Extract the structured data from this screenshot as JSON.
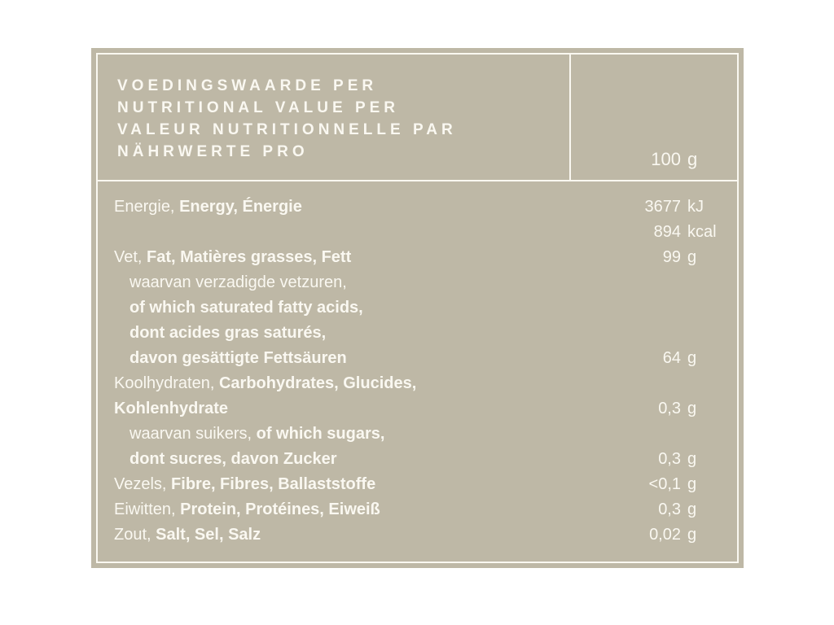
{
  "colors": {
    "page_background": "#ffffff",
    "label_background": "#beb8a6",
    "label_text": "#faf8f1"
  },
  "header": {
    "title_lines": [
      "VOEDINGSWAARDE PER",
      "NUTRITIONAL VALUE PER",
      "VALEUR NUTRITIONNELLE PAR",
      "NÄHRWERTE PRO"
    ],
    "amount": {
      "number": "100",
      "unit": "g"
    }
  },
  "rows": [
    {
      "indent": false,
      "segments": [
        {
          "text": "Energie, ",
          "bold": false
        },
        {
          "text": "Energy, Énergie",
          "bold": true
        }
      ],
      "value_number": "3677",
      "value_unit": "kJ"
    },
    {
      "indent": false,
      "segments": [],
      "value_number": "894",
      "value_unit": "kcal"
    },
    {
      "indent": false,
      "segments": [
        {
          "text": "Vet, ",
          "bold": false
        },
        {
          "text": "Fat, Matières grasses, Fett",
          "bold": true
        }
      ],
      "value_number": "99",
      "value_unit": "g"
    },
    {
      "indent": true,
      "segments": [
        {
          "text": "waarvan verzadigde vetzuren,",
          "bold": false
        }
      ],
      "value_number": "",
      "value_unit": ""
    },
    {
      "indent": true,
      "segments": [
        {
          "text": "of which saturated fatty acids,",
          "bold": true
        }
      ],
      "value_number": "",
      "value_unit": ""
    },
    {
      "indent": true,
      "segments": [
        {
          "text": "dont acides gras saturés,",
          "bold": true
        }
      ],
      "value_number": "",
      "value_unit": ""
    },
    {
      "indent": true,
      "segments": [
        {
          "text": "davon gesättigte Fettsäuren",
          "bold": true
        }
      ],
      "value_number": "64",
      "value_unit": "g"
    },
    {
      "indent": false,
      "segments": [
        {
          "text": "Koolhydraten, ",
          "bold": false
        },
        {
          "text": "Carbohydrates, Glucides,",
          "bold": true
        }
      ],
      "value_number": "",
      "value_unit": ""
    },
    {
      "indent": false,
      "segments": [
        {
          "text": "Kohlenhydrate",
          "bold": true
        }
      ],
      "value_number": "0,3",
      "value_unit": "g"
    },
    {
      "indent": true,
      "segments": [
        {
          "text": "waarvan suikers, ",
          "bold": false
        },
        {
          "text": "of which sugars,",
          "bold": true
        }
      ],
      "value_number": "",
      "value_unit": ""
    },
    {
      "indent": true,
      "segments": [
        {
          "text": "dont sucres, davon Zucker",
          "bold": true
        }
      ],
      "value_number": "0,3",
      "value_unit": "g"
    },
    {
      "indent": false,
      "segments": [
        {
          "text": "Vezels, ",
          "bold": false
        },
        {
          "text": "Fibre, Fibres, Ballaststoffe",
          "bold": true
        }
      ],
      "value_number": "<0,1",
      "value_unit": "g"
    },
    {
      "indent": false,
      "segments": [
        {
          "text": "Eiwitten, ",
          "bold": false
        },
        {
          "text": "Protein, Protéines, Eiweiß",
          "bold": true
        }
      ],
      "value_number": "0,3",
      "value_unit": "g"
    },
    {
      "indent": false,
      "segments": [
        {
          "text": "Zout, ",
          "bold": false
        },
        {
          "text": "Salt, Sel, Salz",
          "bold": true
        }
      ],
      "value_number": "0,02",
      "value_unit": "g"
    }
  ]
}
